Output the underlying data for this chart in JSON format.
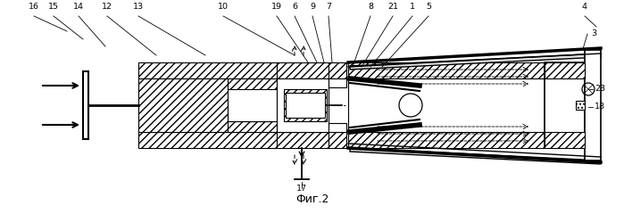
{
  "title": "Фиг.2",
  "bg_color": "#ffffff",
  "line_color": "#000000",
  "figsize": [
    6.99,
    2.4
  ],
  "dpi": 100
}
